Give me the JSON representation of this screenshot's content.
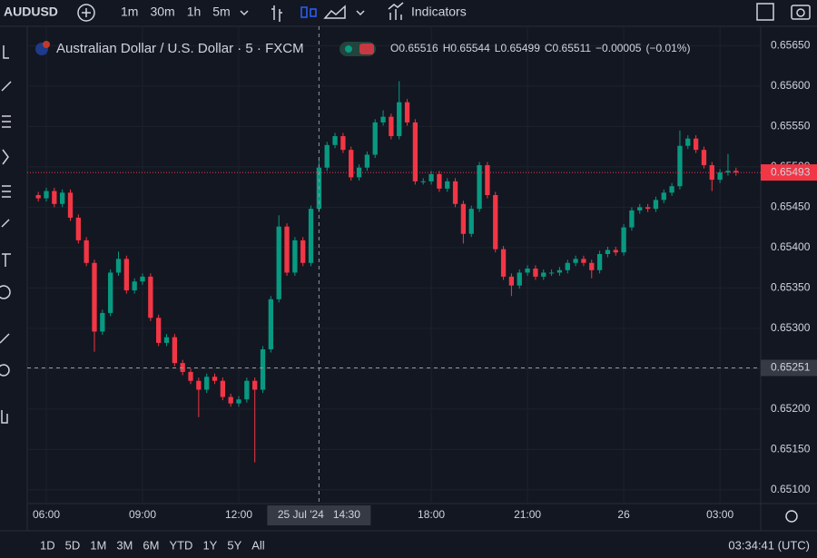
{
  "ui": {
    "symbol": "AUDUSD",
    "intervals": [
      "1m",
      "30m",
      "1h",
      "5m"
    ],
    "active_interval": 3,
    "indicators": "Indicators",
    "ranges": [
      "1D",
      "5D",
      "1M",
      "3M",
      "6M",
      "YTD",
      "1Y",
      "5Y",
      "All"
    ],
    "clock": "03:34:41 (UTC)"
  },
  "chart_data": {
    "type": "candlestick",
    "title": "Australian Dollar / U.S. Dollar · 5 · FXCM",
    "legend": [
      {
        "key": "O",
        "value": 0.65516
      },
      {
        "key": "H",
        "value": 0.65544
      },
      {
        "key": "L",
        "value": 0.65499
      },
      {
        "key": "C",
        "value": 0.65511
      }
    ],
    "change": {
      "value": -5e-05,
      "label": "−0.00005"
    },
    "change_pct": {
      "value": -0.01,
      "label": "(−0.01%)"
    },
    "up_color": "#089981",
    "down_color": "#f23645",
    "x": [
      5.75,
      6,
      6.25,
      6.5,
      6.75,
      7,
      7.25,
      7.5,
      7.75,
      8,
      8.25,
      8.5,
      8.75,
      9,
      9.25,
      9.5,
      9.75,
      10,
      10.25,
      10.5,
      10.75,
      11,
      11.25,
      11.5,
      11.75,
      12,
      12.25,
      12.5,
      12.75,
      13,
      13.25,
      13.5,
      13.75,
      14,
      14.25,
      14.5,
      14.75,
      15,
      15.25,
      15.5,
      15.75,
      16,
      16.25,
      16.5,
      16.75,
      17,
      17.25,
      17.5,
      17.75,
      18,
      18.25,
      18.5,
      18.75,
      19,
      19.25,
      19.5,
      19.75,
      20,
      20.25,
      20.5,
      20.75,
      21,
      21.25,
      21.5,
      21.75,
      22,
      22.25,
      22.5,
      22.75,
      23,
      23.25,
      23.5,
      23.75,
      24,
      24.25,
      24.5,
      24.75,
      25,
      25.25,
      25.5,
      25.75,
      26,
      26.25,
      26.5,
      26.75,
      27,
      27.25,
      27.5
    ],
    "open": [
      0.65465,
      0.65461,
      0.6547,
      0.65454,
      0.65468,
      0.65437,
      0.65409,
      0.65381,
      0.65296,
      0.65319,
      0.65369,
      0.65386,
      0.65347,
      0.65358,
      0.65364,
      0.65313,
      0.65282,
      0.65289,
      0.65257,
      0.65246,
      0.65235,
      0.65224,
      0.6524,
      0.65235,
      0.65215,
      0.65207,
      0.65212,
      0.65235,
      0.65224,
      0.65274,
      0.65336,
      0.65426,
      0.65369,
      0.65409,
      0.65381,
      0.65448,
      0.65499,
      0.65527,
      0.65538,
      0.65521,
      0.65487,
      0.65499,
      0.65515,
      0.65555,
      0.65562,
      0.65538,
      0.6558,
      0.65555,
      0.65482,
      0.65482,
      0.65491,
      0.65473,
      0.65482,
      0.65454,
      0.65417,
      0.65448,
      0.65502,
      0.65465,
      0.65398,
      0.65364,
      0.65353,
      0.65369,
      0.65374,
      0.65364,
      0.65369,
      0.65369,
      0.65372,
      0.65381,
      0.65386,
      0.65381,
      0.65372,
      0.65392,
      0.65397,
      0.65394,
      0.65425,
      0.65446,
      0.6545,
      0.65448,
      0.65459,
      0.65468,
      0.65476,
      0.65526,
      0.65535,
      0.65521,
      0.65502,
      0.65484,
      0.65493,
      0.65495
    ],
    "high": [
      0.65469,
      0.65474,
      0.65474,
      0.65472,
      0.65472,
      0.65441,
      0.65413,
      0.65385,
      0.65323,
      0.65373,
      0.65395,
      0.6539,
      0.65362,
      0.65368,
      0.65368,
      0.65317,
      0.65293,
      0.65293,
      0.65261,
      0.6525,
      0.65239,
      0.65244,
      0.65244,
      0.65239,
      0.65219,
      0.65216,
      0.65239,
      0.65239,
      0.65278,
      0.6534,
      0.6544,
      0.6543,
      0.65413,
      0.65413,
      0.65452,
      0.6551,
      0.65531,
      0.65542,
      0.65542,
      0.65525,
      0.65503,
      0.65519,
      0.65559,
      0.6557,
      0.65566,
      0.65606,
      0.65584,
      0.65559,
      0.65486,
      0.65495,
      0.65495,
      0.65486,
      0.65486,
      0.65458,
      0.65452,
      0.65506,
      0.65506,
      0.65469,
      0.65402,
      0.65368,
      0.65373,
      0.65378,
      0.65378,
      0.65373,
      0.65373,
      0.65376,
      0.65385,
      0.6539,
      0.6539,
      0.65385,
      0.65396,
      0.65401,
      0.65401,
      0.65429,
      0.6545,
      0.65454,
      0.65454,
      0.65463,
      0.65472,
      0.6548,
      0.65545,
      0.65539,
      0.65539,
      0.65525,
      0.65506,
      0.65497,
      0.65516,
      0.65499
    ],
    "low": [
      0.65457,
      0.65457,
      0.6545,
      0.6545,
      0.65433,
      0.65405,
      0.65377,
      0.65271,
      0.65292,
      0.65315,
      0.65365,
      0.65343,
      0.65343,
      0.65354,
      0.65309,
      0.65278,
      0.65278,
      0.65253,
      0.65242,
      0.65231,
      0.6519,
      0.6522,
      0.65231,
      0.65211,
      0.65203,
      0.65203,
      0.65208,
      0.65134,
      0.6522,
      0.6527,
      0.65332,
      0.65365,
      0.65365,
      0.65377,
      0.65377,
      0.65444,
      0.65495,
      0.65523,
      0.65517,
      0.65483,
      0.65483,
      0.65495,
      0.65511,
      0.65551,
      0.65534,
      0.65534,
      0.65551,
      0.65478,
      0.65478,
      0.65478,
      0.65469,
      0.65469,
      0.6545,
      0.65405,
      0.65413,
      0.65444,
      0.65461,
      0.65394,
      0.6536,
      0.6534,
      0.65349,
      0.65365,
      0.6536,
      0.6536,
      0.65365,
      0.65365,
      0.65368,
      0.65377,
      0.65377,
      0.65362,
      0.65368,
      0.65388,
      0.6539,
      0.6539,
      0.65421,
      0.65442,
      0.65444,
      0.65444,
      0.65455,
      0.65464,
      0.65472,
      0.65522,
      0.65517,
      0.65498,
      0.6547,
      0.6548,
      0.65489,
      0.65489
    ],
    "close": [
      0.65461,
      0.6547,
      0.65454,
      0.65468,
      0.65437,
      0.65409,
      0.65381,
      0.65296,
      0.65319,
      0.65369,
      0.65386,
      0.65347,
      0.65358,
      0.65364,
      0.65313,
      0.65282,
      0.65289,
      0.65257,
      0.65246,
      0.65235,
      0.65224,
      0.6524,
      0.65235,
      0.65215,
      0.65207,
      0.65212,
      0.65235,
      0.65224,
      0.65274,
      0.65336,
      0.65426,
      0.65369,
      0.65409,
      0.65381,
      0.65448,
      0.65499,
      0.65527,
      0.65538,
      0.65521,
      0.65487,
      0.65499,
      0.65515,
      0.65555,
      0.65562,
      0.65538,
      0.6558,
      0.65555,
      0.65482,
      0.65482,
      0.65491,
      0.65473,
      0.65482,
      0.65454,
      0.65417,
      0.65448,
      0.65502,
      0.65465,
      0.65398,
      0.65364,
      0.65353,
      0.65369,
      0.65374,
      0.65364,
      0.65369,
      0.65369,
      0.65372,
      0.65381,
      0.65386,
      0.65381,
      0.65372,
      0.65392,
      0.65397,
      0.65394,
      0.65425,
      0.65446,
      0.6545,
      0.65448,
      0.65459,
      0.65468,
      0.65476,
      0.65526,
      0.65535,
      0.65521,
      0.65502,
      0.65484,
      0.65493,
      0.65495,
      0.65493
    ],
    "xlim": [
      5.406,
      28.27
    ],
    "xticks": [
      {
        "value": 6,
        "label": "06:00"
      },
      {
        "value": 9,
        "label": "09:00"
      },
      {
        "value": 12,
        "label": "12:00"
      },
      {
        "value": 18,
        "label": "18:00"
      },
      {
        "value": 21,
        "label": "21:00"
      },
      {
        "value": 24,
        "label": "26"
      },
      {
        "value": 27,
        "label": "03:00"
      }
    ],
    "ylim": [
      0.65083,
      0.65665
    ],
    "yticks": [
      {
        "value": 0.651,
        "label": "0.65100"
      },
      {
        "value": 0.6515,
        "label": "0.65150"
      },
      {
        "value": 0.652,
        "label": "0.65200"
      },
      {
        "value": 0.6525,
        "label": "0.65250"
      },
      {
        "value": 0.653,
        "label": "0.65300"
      },
      {
        "value": 0.6535,
        "label": "0.65350"
      },
      {
        "value": 0.654,
        "label": "0.65400"
      },
      {
        "value": 0.6545,
        "label": "0.65450"
      },
      {
        "value": 0.655,
        "label": "0.65500"
      },
      {
        "value": 0.6555,
        "label": "0.65550"
      },
      {
        "value": 0.656,
        "label": "0.65600"
      },
      {
        "value": 0.6565,
        "label": "0.65650"
      }
    ],
    "grid": true,
    "last_price": 0.65493,
    "crosshair": {
      "x": {
        "value": 14.5,
        "label": "25 Jul '24   14:30"
      },
      "y": 0.65251
    }
  }
}
